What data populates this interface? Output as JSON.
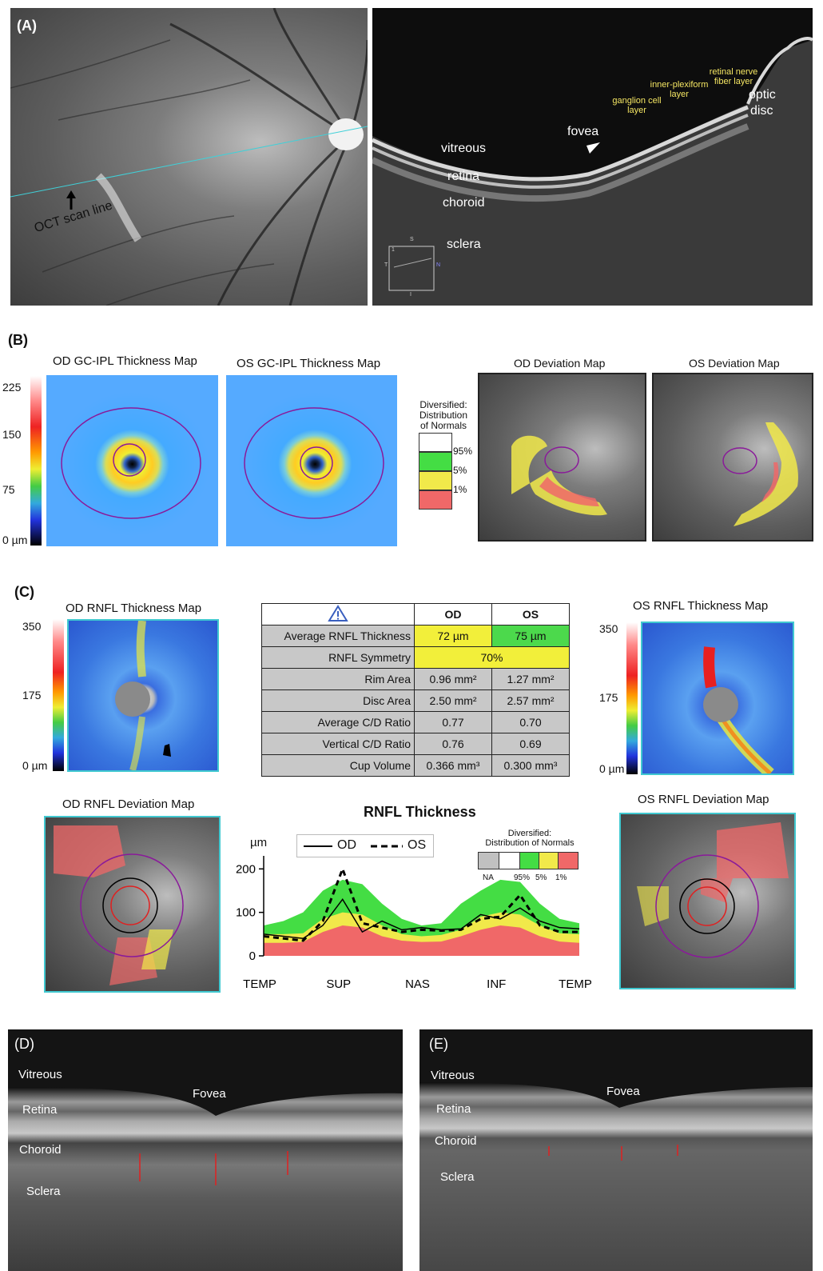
{
  "panelA": {
    "label": "(A)",
    "scan_line_label": "OCT scan line",
    "oct_labels": {
      "vitreous": "vitreous",
      "retina": "retina",
      "choroid": "choroid",
      "sclera": "sclera",
      "fovea": "fovea",
      "optic_disc_1": "optic",
      "optic_disc_2": "disc",
      "ganglion_1": "ganglion cell",
      "ganglion_2": "layer",
      "inner_1": "inner-plexiform",
      "inner_2": "layer",
      "rnfl_1": "retinal nerve",
      "rnfl_2": "fiber layer"
    },
    "inset": {
      "s": "S",
      "t": "T",
      "n": "N",
      "i": "I",
      "one": "1"
    }
  },
  "panelB": {
    "label": "(B)",
    "od_gc_title": "OD GC-IPL Thickness Map",
    "os_gc_title": "OS GC-IPL Thickness Map",
    "scale": [
      "225",
      "150",
      "75",
      "0 µm"
    ],
    "legend_title_1": "Diversified:",
    "legend_title_2": "Distribution",
    "legend_title_3": "of Normals",
    "legend_items": [
      "95%",
      "5%",
      "1%"
    ],
    "od_dev_title": "OD Deviation Map",
    "os_dev_title": "OS Deviation Map"
  },
  "panelC": {
    "label": "(C)",
    "od_rnfl_title": "OD RNFL Thickness Map",
    "os_rnfl_title": "OS RNFL Thickness Map",
    "scale_od": [
      "350",
      "175",
      "0 µm"
    ],
    "scale_os": [
      "350",
      "175",
      "0 µm"
    ],
    "table": {
      "warning_icon": "warning-triangle-icon",
      "col_od": "OD",
      "col_os": "OS",
      "rows": [
        {
          "label": "Average RNFL Thickness",
          "od": "72 µm",
          "os": "75 µm"
        },
        {
          "label": "RNFL Symmetry",
          "both": "70%"
        },
        {
          "label": "Rim Area",
          "od": "0.96 mm²",
          "os": "1.27 mm²"
        },
        {
          "label": "Disc Area",
          "od": "2.50 mm²",
          "os": "2.57 mm²"
        },
        {
          "label": "Average C/D Ratio",
          "od": "0.77",
          "os": "0.70"
        },
        {
          "label": "Vertical C/D Ratio",
          "od": "0.76",
          "os": "0.69"
        },
        {
          "label": "Cup Volume",
          "od": "0.366 mm³",
          "os": "0.300 mm³"
        }
      ]
    },
    "od_dev_title": "OD RNFL Deviation Map",
    "os_dev_title": "OS RNFL Deviation Map",
    "chart_title": "RNFL Thickness",
    "chart_unit": "µm",
    "chart_legend": {
      "od": "OD",
      "os": "OS"
    },
    "chart_norm_title_1": "Diversified:",
    "chart_norm_title_2": "Distribution of Normals",
    "chart_norm_items": [
      "NA",
      "95%",
      "5%",
      "1%"
    ]
  },
  "chart_data": {
    "type": "line",
    "title": "RNFL Thickness",
    "ylabel": "µm",
    "x_categories": [
      "TEMP",
      "SUP",
      "NAS",
      "INF",
      "TEMP"
    ],
    "yticks": [
      0,
      100,
      200
    ],
    "ylim": [
      0,
      230
    ],
    "x": [
      0,
      0.25,
      0.5,
      0.75,
      1,
      1.25,
      1.5,
      1.75,
      2,
      2.25,
      2.5,
      2.75,
      3,
      3.25,
      3.5,
      3.75,
      4
    ],
    "series": [
      {
        "name": "OD",
        "style": "solid",
        "values": [
          50,
          45,
          40,
          70,
          130,
          55,
          80,
          60,
          65,
          60,
          62,
          95,
          85,
          110,
          80,
          65,
          62
        ]
      },
      {
        "name": "OS",
        "style": "dashed",
        "values": [
          45,
          40,
          35,
          80,
          200,
          75,
          65,
          55,
          60,
          58,
          60,
          85,
          90,
          140,
          70,
          55,
          55
        ]
      }
    ],
    "normal_band_95": [
      70,
      80,
      100,
      150,
      175,
      165,
      120,
      85,
      70,
      75,
      120,
      150,
      175,
      170,
      120,
      85,
      75
    ],
    "normal_band_5": [
      50,
      50,
      52,
      85,
      100,
      95,
      70,
      50,
      45,
      48,
      60,
      90,
      100,
      95,
      70,
      52,
      50
    ],
    "normal_band_1": [
      30,
      30,
      32,
      55,
      70,
      65,
      45,
      35,
      32,
      33,
      45,
      60,
      70,
      65,
      45,
      33,
      30
    ],
    "legend_position": "top",
    "colors": {
      "green": "#44dd44",
      "yellow": "#f1e94a",
      "red": "#f06868",
      "na": "#c0c0c0"
    }
  },
  "panelD": {
    "label": "(D)",
    "vitreous": "Vitreous",
    "fovea": "Fovea",
    "retina": "Retina",
    "choroid": "Choroid",
    "sclera": "Sclera"
  },
  "panelE": {
    "label": "(E)",
    "vitreous": "Vitreous",
    "fovea": "Fovea",
    "retina": "Retina",
    "choroid": "Choroid",
    "sclera": "Sclera"
  }
}
